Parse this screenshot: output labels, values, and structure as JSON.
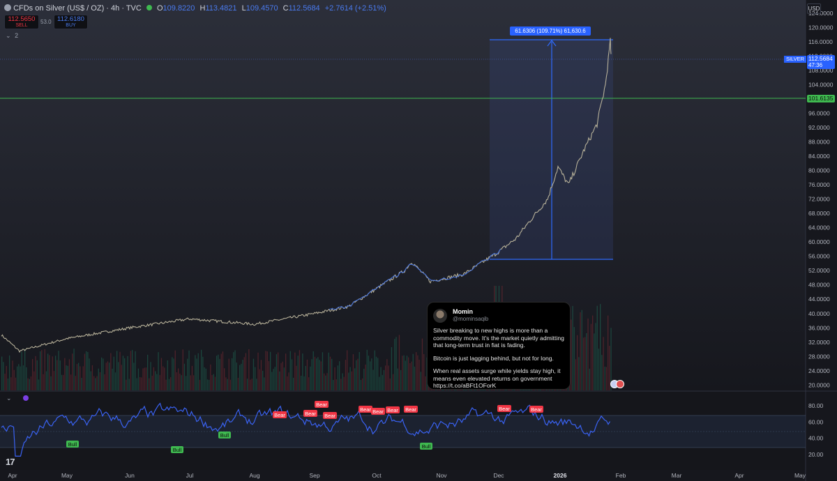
{
  "header": {
    "symbol_title": "CFDs on Silver (US$ / OZ) · 4h · TVC",
    "ohlc": {
      "o_label": "O",
      "o": "109.8220",
      "h_label": "H",
      "h": "113.4821",
      "l_label": "L",
      "l": "109.4570",
      "c_label": "C",
      "c": "112.5684",
      "change": "+2.7614 (+2.51%)"
    },
    "sell_price": "112.5650",
    "sell_label": "SELL",
    "spread": "53.0",
    "buy_price": "112.6180",
    "buy_label": "BUY",
    "collapse_count": "2"
  },
  "price_axis": {
    "currency": "USD",
    "ticks": [
      "124.0000",
      "120.0000",
      "116.0000",
      "112.0000",
      "108.0000",
      "104.0000",
      "100.0000",
      "96.0000",
      "92.0000",
      "88.0000",
      "84.0000",
      "80.0000",
      "76.0000",
      "72.0000",
      "68.0000",
      "64.0000",
      "60.0000",
      "56.0000",
      "52.0000",
      "48.0000",
      "44.0000",
      "40.0000",
      "36.0000",
      "32.0000",
      "28.0000",
      "24.0000",
      "20.0000"
    ],
    "symbol_tag": "SILVER",
    "last_price": "112.5684",
    "countdown": "47:36",
    "hline_price": "101.6135"
  },
  "measure": {
    "label": "61.6306 (109.71%) 61,630.6"
  },
  "rsi": {
    "ticks": [
      "80.00",
      "60.00",
      "40.00",
      "20.00"
    ],
    "bear_label": "Bear",
    "bull_label": "Bull"
  },
  "time_axis": {
    "labels": [
      "Apr",
      "May",
      "Jun",
      "Jul",
      "Aug",
      "Sep",
      "Oct",
      "Nov",
      "Dec",
      "2026",
      "Feb",
      "Mar",
      "Apr",
      "May"
    ]
  },
  "tweet": {
    "name": "Momin",
    "handle": "@mominsaqib",
    "p1": "Silver breaking to new highs is more than a commodity move. It's the market quietly admitting that long-term trust in fiat is fading.",
    "p2": "Bitcoin is just lagging behind, but not for long.",
    "p3": "When real assets surge while yields stay high, it means even elevated returns on government https://t.co/aBFt1OForK"
  },
  "chart_data": {
    "type": "line",
    "title": "CFDs on Silver (US$ / OZ) · 4h · TVC",
    "xlabel": "",
    "ylabel": "",
    "x_ticks": [
      "Apr",
      "May",
      "Jun",
      "Jul",
      "Aug",
      "Sep",
      "Oct",
      "Nov",
      "Dec",
      "2026",
      "Feb",
      "Mar",
      "Apr",
      "May"
    ],
    "ylim": [
      20,
      124
    ],
    "series": [
      {
        "name": "SILVER",
        "x": [
          "Apr",
          "Apr",
          "May",
          "Jun",
          "Jul",
          "Aug",
          "Sep",
          "Sep",
          "Oct",
          "Oct",
          "Oct",
          "Nov",
          "Nov",
          "Dec",
          "Dec",
          "Dec",
          "Dec",
          "Dec",
          "2026",
          "2026",
          "2026",
          "2026",
          "2026",
          "2026"
        ],
        "values": [
          34,
          29.5,
          33,
          36,
          38.5,
          37,
          40,
          42,
          47,
          52,
          54.5,
          49,
          51,
          57,
          61,
          66,
          72,
          81,
          76,
          86,
          93,
          104,
          116,
          112.5684
        ]
      }
    ],
    "horizontal_line": 101.6135,
    "measurement": {
      "from": 56,
      "to": 117.6,
      "label": "61.6306 (109.71%) 61,630.6"
    },
    "rsi": {
      "ylim": [
        10,
        90
      ],
      "bands": [
        30,
        70
      ],
      "bear_signals": 10,
      "bull_signals": 4
    }
  }
}
